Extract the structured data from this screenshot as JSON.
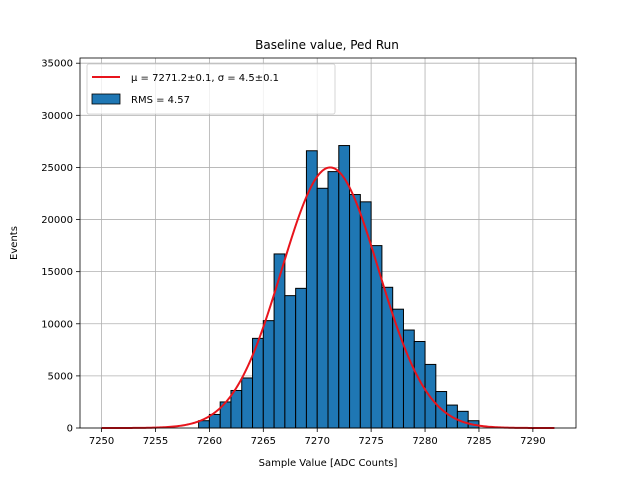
{
  "chart_data": {
    "type": "bar",
    "title": "Baseline value, Ped Run",
    "xlabel": "Sample Value [ADC Counts]",
    "ylabel": "Events",
    "xlim": [
      7248,
      7294
    ],
    "ylim": [
      0,
      35500
    ],
    "xticks": [
      7250,
      7255,
      7260,
      7265,
      7270,
      7275,
      7280,
      7285,
      7290
    ],
    "yticks": [
      0,
      5000,
      10000,
      15000,
      20000,
      25000,
      30000,
      35000
    ],
    "grid": true,
    "legend_position": "top-left",
    "bins": {
      "x_start": [
        7259,
        7260,
        7261,
        7262,
        7263,
        7264,
        7265,
        7266,
        7267,
        7268,
        7269,
        7270,
        7271,
        7272,
        7273,
        7274,
        7275,
        7276,
        7277,
        7278,
        7279,
        7280,
        7281,
        7282,
        7283,
        7284
      ],
      "width": 1,
      "values": [
        700,
        1300,
        2500,
        3600,
        4800,
        8600,
        10300,
        16700,
        12700,
        13400,
        26600,
        23000,
        24600,
        27100,
        22400,
        21700,
        17500,
        13500,
        11400,
        9400,
        8300,
        6100,
        3500,
        2200,
        1600,
        700
      ]
    },
    "fit": {
      "mu": 7271.2,
      "sigma": 4.5,
      "amplitude": 25000,
      "x_range": [
        7250,
        7292
      ]
    },
    "series": [
      {
        "name": "$\\mu=$7271.2±0.1, $\\sigma=$4.5±0.1",
        "display": "μ = 7271.2±0.1, σ = 4.5±0.1",
        "kind": "line",
        "color": "#e8141c"
      },
      {
        "name": "RMS = 4.57",
        "display": "RMS = 4.57",
        "kind": "bar",
        "color": "#1f77b4"
      }
    ]
  }
}
